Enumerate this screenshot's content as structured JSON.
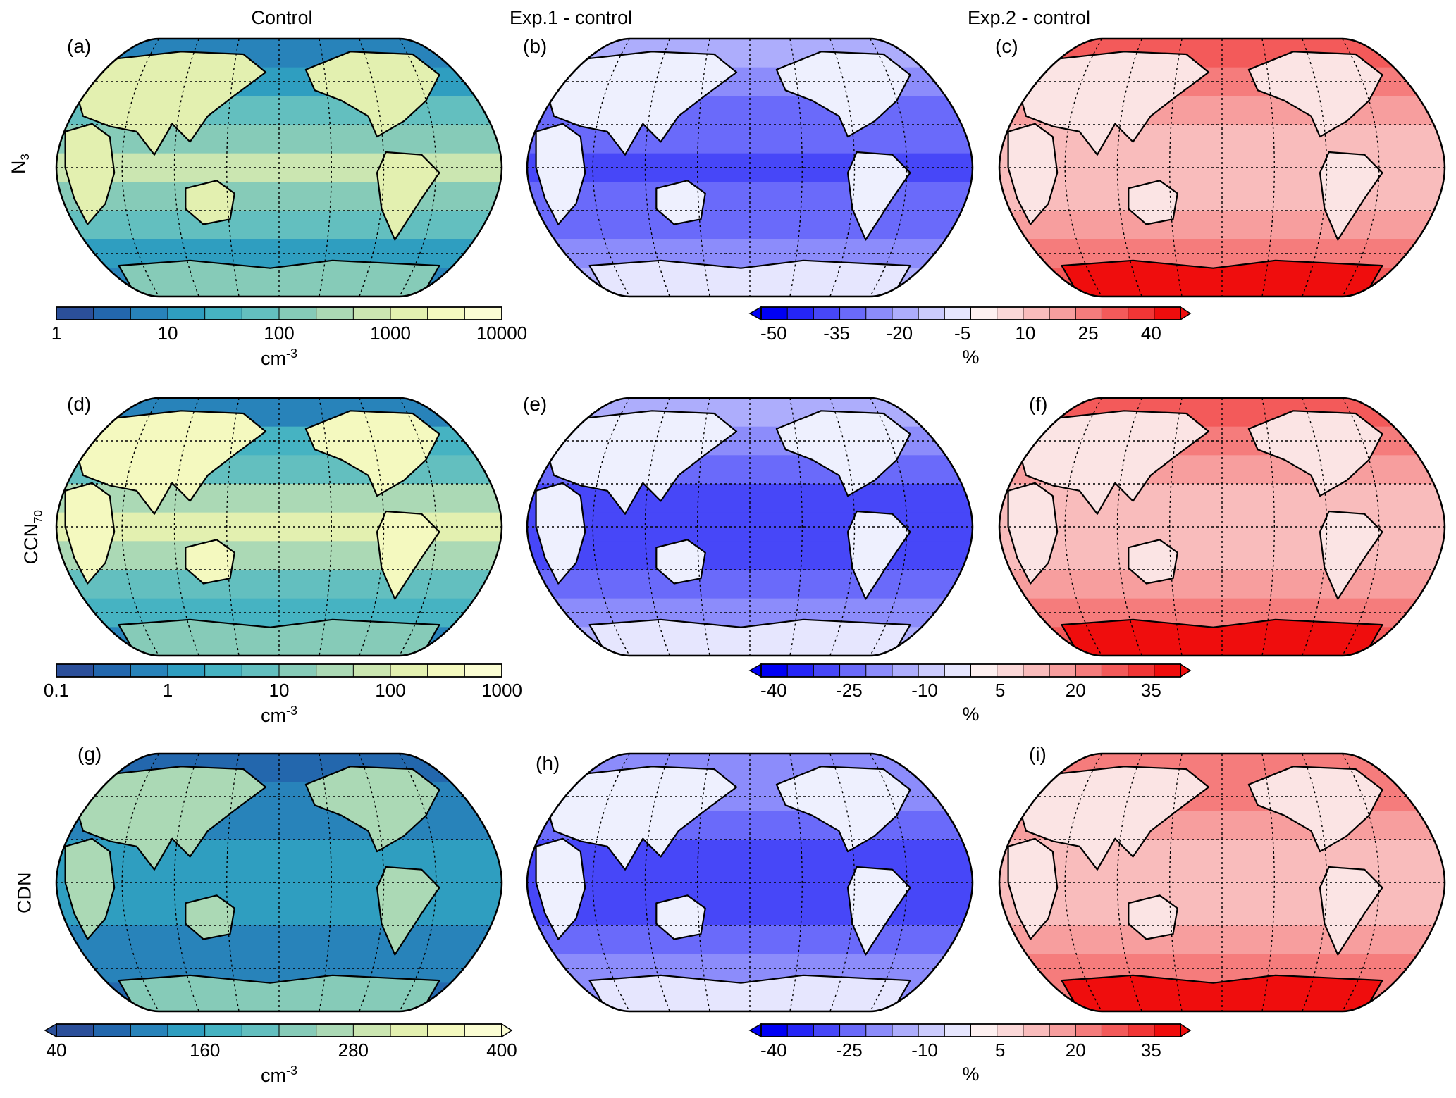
{
  "column_titles": [
    "Control",
    "Exp.1 - control",
    "Exp.2 - control"
  ],
  "row_labels": [
    {
      "main": "N",
      "sub": "3"
    },
    {
      "main": "CCN",
      "sub": "70"
    },
    {
      "main": "CDN",
      "sub": ""
    }
  ],
  "panels": [
    {
      "label": "(a)",
      "type": "control",
      "palette": "ygb",
      "shade": 0.62
    },
    {
      "label": "(b)",
      "type": "exp1",
      "palette": "blue",
      "shade": 0.55
    },
    {
      "label": "(c)",
      "type": "exp2",
      "palette": "red",
      "shade": 0.45
    },
    {
      "label": "(d)",
      "type": "control",
      "palette": "ygb",
      "shade": 0.7
    },
    {
      "label": "(e)",
      "type": "exp1",
      "palette": "blue",
      "shade": 0.45
    },
    {
      "label": "(f)",
      "type": "exp2",
      "palette": "red",
      "shade": 0.45
    },
    {
      "label": "(g)",
      "type": "control",
      "palette": "ygb",
      "shade": 0.2
    },
    {
      "label": "(h)",
      "type": "exp1",
      "palette": "blue",
      "shade": 0.4
    },
    {
      "label": "(i)",
      "type": "exp2",
      "palette": "red",
      "shade": 0.4
    }
  ],
  "colorbars": {
    "row1_control": {
      "ticks": [
        "1",
        "10",
        "100",
        "1000",
        "10000"
      ],
      "unit_main": "cm",
      "unit_sup": "-3",
      "palette": "ygb",
      "extend": "none"
    },
    "row1_diff": {
      "ticks": [
        "-50",
        "-35",
        "-20",
        "-5",
        "10",
        "25",
        "40"
      ],
      "unit_main": "%",
      "unit_sup": "",
      "palette": "diverging",
      "extend": "both"
    },
    "row2_control": {
      "ticks": [
        "0.1",
        "1",
        "10",
        "100",
        "1000"
      ],
      "unit_main": "cm",
      "unit_sup": "-3",
      "palette": "ygb",
      "extend": "none"
    },
    "row2_diff": {
      "ticks": [
        "-40",
        "-25",
        "-10",
        "5",
        "20",
        "35"
      ],
      "unit_main": "%",
      "unit_sup": "",
      "palette": "diverging",
      "extend": "both"
    },
    "row3_control": {
      "ticks": [
        "40",
        "160",
        "280",
        "400"
      ],
      "unit_main": "cm",
      "unit_sup": "-3",
      "palette": "ygb",
      "extend": "both"
    },
    "row3_diff": {
      "ticks": [
        "-40",
        "-25",
        "-10",
        "5",
        "20",
        "35"
      ],
      "unit_main": "%",
      "unit_sup": "",
      "palette": "diverging",
      "extend": "both"
    }
  },
  "colors": {
    "ygb": [
      "#2b4f9a",
      "#2367ad",
      "#2883ba",
      "#2f9ec0",
      "#46b3c2",
      "#63bfbf",
      "#86cbb8",
      "#abd9b5",
      "#cbe6b1",
      "#e3f0b0",
      "#f4f9bf",
      "#fbfdd3"
    ],
    "blue": [
      "#0000f5",
      "#2525f7",
      "#4747f8",
      "#6a6afa",
      "#8c8cfb",
      "#adadfc",
      "#cbcbfd",
      "#e6e6fe"
    ],
    "red": [
      "#fdf0f0",
      "#fbd8d8",
      "#f9bcbc",
      "#f79e9e",
      "#f57c7c",
      "#f35a5a",
      "#f13636",
      "#ef0d0d"
    ],
    "coast": "#000000"
  }
}
